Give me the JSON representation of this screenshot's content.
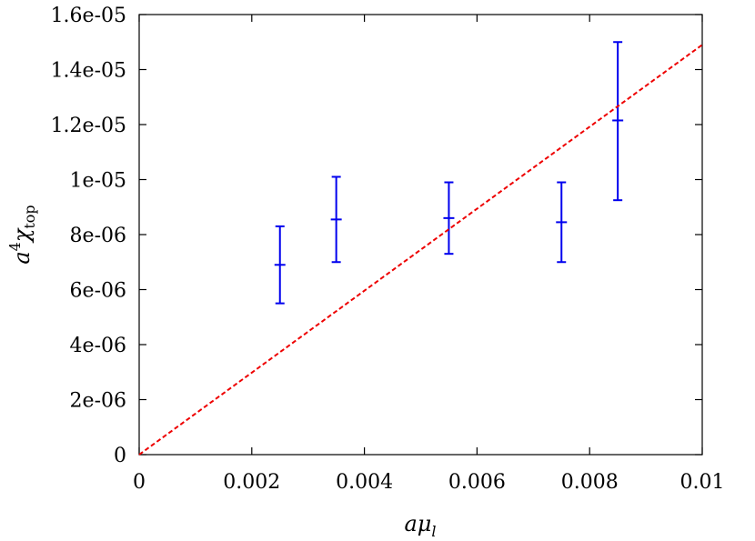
{
  "chart_data": {
    "type": "scatter",
    "title": "",
    "xlabel": "aμl",
    "ylabel": "a4χtop",
    "xlim": [
      0,
      0.01
    ],
    "ylim": [
      0,
      1.6e-05
    ],
    "x_ticks": [
      0,
      0.002,
      0.004,
      0.006,
      0.008,
      0.01
    ],
    "x_tick_labels": [
      "0",
      "0.002",
      "0.004",
      "0.006",
      "0.008",
      "0.01"
    ],
    "y_ticks": [
      0,
      2e-06,
      4e-06,
      6e-06,
      8e-06,
      1e-05,
      1.2e-05,
      1.4e-05,
      1.6e-05
    ],
    "y_tick_labels": [
      "0",
      "2e-06",
      "4e-06",
      "6e-06",
      "8e-06",
      "1e-05",
      "1.2e-05",
      "1.4e-05",
      "1.6e-05"
    ],
    "grid": false,
    "series": [
      {
        "kind": "errorbar",
        "color": "#0000ee",
        "points": [
          {
            "x": 0.0025,
            "y": 6.9e-06,
            "ylow": 5.5e-06,
            "yhigh": 8.3e-06
          },
          {
            "x": 0.0035,
            "y": 8.55e-06,
            "ylow": 7e-06,
            "yhigh": 1.01e-05
          },
          {
            "x": 0.0055,
            "y": 8.6e-06,
            "ylow": 7.3e-06,
            "yhigh": 9.9e-06
          },
          {
            "x": 0.0075,
            "y": 8.45e-06,
            "ylow": 7e-06,
            "yhigh": 9.9e-06
          },
          {
            "x": 0.0085,
            "y": 1.215e-05,
            "ylow": 9.25e-06,
            "yhigh": 1.5e-05
          }
        ]
      },
      {
        "kind": "line",
        "color": "#ee0000",
        "dashed": true,
        "points": [
          {
            "x": 0,
            "y": 0
          },
          {
            "x": 0.01,
            "y": 1.49e-05
          }
        ]
      }
    ]
  }
}
